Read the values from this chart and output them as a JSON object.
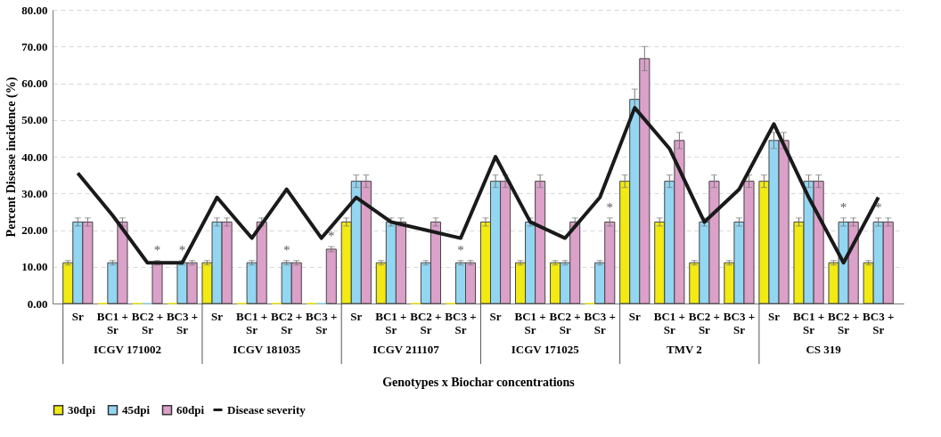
{
  "chart_data": {
    "type": "bar",
    "xlabel": "Genotypes x Biochar concentrations",
    "ylabel": "Percent Disease incidence (%)",
    "categories": [
      "Sr",
      "BC1 +\nSr",
      "BC2 +\nSr",
      "BC3 +\nSr",
      "Sr",
      "BC1 +\nSr",
      "BC2 +\nSr",
      "BC3 +\nSr",
      "Sr",
      "BC1 +\nSr",
      "BC2 +\nSr",
      "BC3 +\nSr",
      "Sr",
      "BC1 +\nSr",
      "BC2 +\nSr",
      "BC3 +\nSr",
      "Sr",
      "BC1 +\nSr",
      "BC2 +\nSr",
      "BC3 +\nSr",
      "Sr",
      "BC1 +\nSr",
      "BC2 +\nSr",
      "BC3 +\nSr"
    ],
    "series": [
      {
        "name": "30dpi",
        "color": "#f2ea12",
        "values": [
          11.1,
          0,
          0,
          0,
          11.1,
          0,
          0,
          0,
          22.2,
          11.1,
          0,
          0,
          22.2,
          11.1,
          11.1,
          0,
          33.3,
          22.2,
          11.1,
          11.1,
          33.3,
          22.2,
          11.1,
          11.1
        ],
        "errors": [
          0.6,
          null,
          null,
          null,
          0.6,
          null,
          null,
          null,
          1.1,
          0.6,
          null,
          null,
          1.1,
          0.6,
          0.6,
          null,
          1.7,
          1.1,
          0.6,
          0.6,
          1.7,
          1.1,
          0.6,
          0.6
        ]
      },
      {
        "name": "45dpi",
        "color": "#93d6f2",
        "values": [
          22.2,
          11.1,
          0,
          11.1,
          22.2,
          11.1,
          11.1,
          0,
          33.3,
          22.2,
          11.1,
          11.1,
          33.3,
          22.2,
          11.1,
          11.1,
          55.6,
          33.3,
          22.2,
          22.2,
          44.4,
          33.3,
          22.2,
          22.2
        ],
        "errors": [
          1.1,
          0.6,
          null,
          0.6,
          1.1,
          0.6,
          0.6,
          null,
          1.7,
          1.1,
          0.6,
          0.6,
          1.7,
          1.1,
          0.6,
          0.6,
          2.8,
          1.7,
          1.1,
          1.1,
          2.2,
          1.7,
          1.1,
          1.1
        ],
        "value_labels": [
          null,
          null,
          null,
          "*",
          null,
          null,
          "*",
          null,
          null,
          null,
          null,
          "*",
          null,
          null,
          null,
          null,
          null,
          null,
          null,
          null,
          null,
          null,
          "*",
          "*"
        ]
      },
      {
        "name": "60dpi",
        "color": "#dba1c9",
        "values": [
          22.2,
          22.2,
          11.1,
          11.1,
          22.2,
          22.2,
          11.1,
          14.8,
          33.3,
          22.2,
          22.2,
          11.1,
          33.3,
          33.3,
          22.2,
          22.2,
          66.7,
          44.4,
          33.3,
          33.3,
          44.4,
          33.3,
          22.2,
          22.2
        ],
        "errors": [
          1.1,
          1.1,
          0.6,
          0.6,
          1.1,
          1.1,
          0.6,
          0.7,
          1.7,
          1.1,
          1.1,
          0.6,
          1.7,
          1.7,
          1.1,
          1.1,
          3.3,
          2.2,
          1.7,
          1.7,
          2.2,
          1.7,
          1.1,
          1.1
        ],
        "value_labels": [
          null,
          null,
          "*",
          null,
          null,
          null,
          null,
          "*",
          null,
          null,
          null,
          null,
          null,
          null,
          null,
          "*",
          null,
          null,
          null,
          null,
          null,
          null,
          null,
          null
        ]
      },
      {
        "name": "Disease severity",
        "type": "line",
        "color": "#1a1a1a",
        "values": [
          35.5,
          24,
          11.1,
          11.1,
          28.9,
          17.8,
          31.1,
          17.8,
          28.9,
          22.2,
          20,
          17.8,
          40,
          22.2,
          17.8,
          28.9,
          53.3,
          42.2,
          22.2,
          31.1,
          48.9,
          28.9,
          11.1,
          28.9
        ]
      }
    ],
    "annotations": [
      "ICGV 171002",
      "ICGV 181035",
      "ICGV 211107",
      "ICGV 171025",
      "TMV 2",
      "CS 319"
    ],
    "ylim": [
      0,
      80
    ],
    "yticks": [
      {
        "value": 0,
        "label": "0.00"
      },
      {
        "value": 10,
        "label": "10.00"
      },
      {
        "value": 20,
        "label": "20.00"
      },
      {
        "value": 30,
        "label": "30.00"
      },
      {
        "value": 40,
        "label": "40.00"
      },
      {
        "value": 50,
        "label": "50.00"
      },
      {
        "value": 60,
        "label": "60.00"
      },
      {
        "value": 70,
        "label": "70.00"
      },
      {
        "value": 80,
        "label": "80.00"
      }
    ],
    "grid": "y",
    "legend": "bottom"
  }
}
